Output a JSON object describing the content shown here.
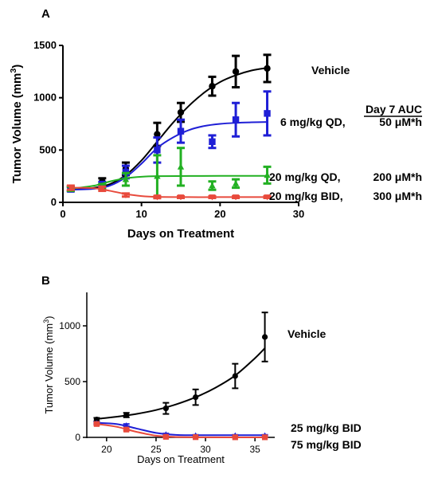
{
  "chart_data": [
    {
      "panel": "A",
      "type": "line",
      "xlabel": "Days on Treatment",
      "ylabel_main": "Tumor Volume (mm",
      "ylabel_sup": "3",
      "ylabel_end": ")",
      "xlim": [
        0,
        30
      ],
      "ylim": [
        0,
        1500
      ],
      "xticks": [
        0,
        10,
        20,
        30
      ],
      "yticks": [
        0,
        500,
        1000,
        1500
      ],
      "auc_header": "Day 7 AUC",
      "series": [
        {
          "name": "Vehicle",
          "label_suffix": "",
          "color": "#000000",
          "marker": "circle",
          "x": [
            1,
            5,
            8,
            12,
            15,
            19,
            22,
            26
          ],
          "y": [
            130,
            200,
            320,
            650,
            860,
            1110,
            1250,
            1280
          ],
          "err": [
            20,
            30,
            60,
            110,
            90,
            90,
            150,
            130
          ],
          "fit": [
            [
              1,
              125
            ],
            [
              4,
              140
            ],
            [
              6,
              175
            ],
            [
              8,
              260
            ],
            [
              10,
              400
            ],
            [
              12,
              580
            ],
            [
              14,
              760
            ],
            [
              16,
              920
            ],
            [
              18,
              1050
            ],
            [
              20,
              1150
            ],
            [
              22,
              1215
            ],
            [
              24,
              1260
            ],
            [
              26,
              1285
            ]
          ]
        },
        {
          "name": "6 mg/kg QD,",
          "label_suffix": "",
          "auc": "50 μM*h",
          "color": "#1f1fd6",
          "marker": "square",
          "x": [
            1,
            5,
            8,
            12,
            15,
            19,
            22,
            26
          ],
          "y": [
            125,
            170,
            290,
            500,
            680,
            580,
            790,
            850
          ],
          "err": [
            20,
            25,
            60,
            120,
            110,
            60,
            160,
            210
          ],
          "fit": [
            [
              1,
              120
            ],
            [
              4,
              130
            ],
            [
              6,
              160
            ],
            [
              8,
              240
            ],
            [
              10,
              370
            ],
            [
              12,
              520
            ],
            [
              14,
              620
            ],
            [
              16,
              690
            ],
            [
              18,
              730
            ],
            [
              20,
              750
            ],
            [
              22,
              760
            ],
            [
              24,
              765
            ],
            [
              26,
              768
            ]
          ]
        },
        {
          "name": "20 mg/kg QD,",
          "label_suffix": "",
          "auc": "200 μM*h",
          "color": "#22b022",
          "marker": "triangle-up",
          "x": [
            1,
            5,
            8,
            12,
            15,
            19,
            22,
            26
          ],
          "y": [
            130,
            150,
            220,
            250,
            340,
            160,
            180,
            260
          ],
          "err": [
            20,
            25,
            60,
            200,
            180,
            40,
            40,
            80
          ],
          "fit": [
            [
              1,
              130
            ],
            [
              4,
              160
            ],
            [
              6,
              200
            ],
            [
              8,
              230
            ],
            [
              10,
              245
            ],
            [
              12,
              250
            ],
            [
              16,
              252
            ],
            [
              20,
              253
            ],
            [
              26,
              253
            ]
          ]
        },
        {
          "name": "20 mg/kg BID,",
          "label_suffix": "",
          "auc": "300 μM*h",
          "color": "#e84a3c",
          "marker": "triangle-down",
          "x": [
            1,
            5,
            8,
            12,
            15,
            19,
            22,
            26
          ],
          "y": [
            140,
            130,
            70,
            50,
            50,
            50,
            50,
            50
          ],
          "err": [
            20,
            20,
            15,
            10,
            8,
            8,
            8,
            8
          ],
          "fit": [
            [
              1,
              140
            ],
            [
              4,
              135
            ],
            [
              6,
              110
            ],
            [
              8,
              80
            ],
            [
              10,
              60
            ],
            [
              12,
              52
            ],
            [
              16,
              50
            ],
            [
              20,
              50
            ],
            [
              26,
              50
            ]
          ]
        }
      ]
    },
    {
      "panel": "B",
      "type": "line",
      "xlabel": "Days on Treatment",
      "ylabel_main": "Tumor Volume (mm",
      "ylabel_sup": "3",
      "ylabel_end": ")",
      "xlim": [
        18,
        37
      ],
      "ylim": [
        0,
        1300
      ],
      "xticks": [
        20,
        25,
        30,
        35
      ],
      "yticks": [
        0,
        500,
        1000
      ],
      "series": [
        {
          "name": "Vehicle",
          "color": "#000000",
          "marker": "circle",
          "x": [
            19,
            22,
            26,
            29,
            33,
            36
          ],
          "y": [
            160,
            200,
            260,
            360,
            550,
            900
          ],
          "err": [
            15,
            20,
            50,
            70,
            110,
            220
          ],
          "fit": [
            [
              19,
              165
            ],
            [
              21,
              185
            ],
            [
              23,
              210
            ],
            [
              25,
              245
            ],
            [
              27,
              295
            ],
            [
              29,
              360
            ],
            [
              31,
              445
            ],
            [
              33,
              555
            ],
            [
              35,
              710
            ],
            [
              36,
              800
            ]
          ]
        },
        {
          "name": "25 mg/kg BID",
          "color": "#1f1fd6",
          "marker": "triangle-up",
          "x": [
            19,
            22,
            26,
            29,
            33,
            36
          ],
          "y": [
            130,
            110,
            30,
            20,
            20,
            20
          ],
          "err": [
            10,
            10,
            5,
            3,
            3,
            3
          ],
          "fit": [
            [
              19,
              130
            ],
            [
              21,
              120
            ],
            [
              23,
              80
            ],
            [
              25,
              40
            ],
            [
              27,
              22
            ],
            [
              29,
              20
            ],
            [
              36,
              20
            ]
          ]
        },
        {
          "name": "75 mg/kg BID",
          "color": "#e84a3c",
          "marker": "square",
          "x": [
            19,
            22,
            26,
            29,
            33,
            36
          ],
          "y": [
            120,
            70,
            5,
            2,
            1,
            1
          ],
          "err": [
            10,
            10,
            3,
            1,
            1,
            1
          ],
          "fit": [
            [
              19,
              120
            ],
            [
              21,
              95
            ],
            [
              23,
              50
            ],
            [
              25,
              15
            ],
            [
              27,
              4
            ],
            [
              29,
              1
            ],
            [
              36,
              0
            ]
          ]
        }
      ]
    }
  ],
  "panel_a_letter": "A",
  "panel_b_letter": "B"
}
